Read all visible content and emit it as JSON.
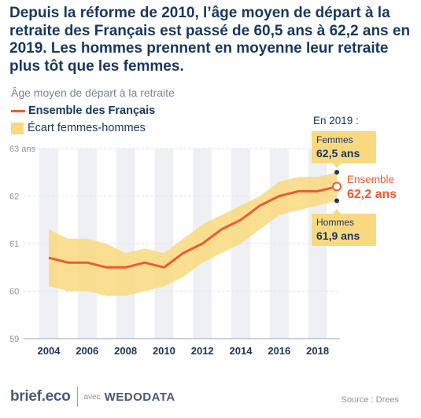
{
  "title": "Depuis la réforme de 2010, l’âge moyen de départ à la retraite des Français est passé de 60,5 ans à 62,2 ans en 2019. Les hommes prennent en moyenne leur retraite plus tôt que les femmes.",
  "colors": {
    "line": "#ef5a30",
    "band": "#f9d97f",
    "column": "#eef0f4",
    "text": "#17375e",
    "axis": "#9aa3b0"
  },
  "chart_data": {
    "type": "line",
    "title": "",
    "ylabel": "Âge moyen de départ à la retraite",
    "ylim": [
      59,
      63
    ],
    "y_ticks": [
      "63 ans",
      "62",
      "61",
      "60",
      "59"
    ],
    "x_ticks": [
      "2004",
      "2006",
      "2008",
      "2010",
      "2012",
      "2014",
      "2016",
      "2018"
    ],
    "legend": [
      "Ensemble des Français",
      "Écart femmes-hommes"
    ],
    "legend_position": "top-left",
    "series": [
      {
        "name": "Ensemble des Français",
        "x": [
          2004,
          2005,
          2006,
          2007,
          2008,
          2009,
          2010,
          2011,
          2012,
          2013,
          2014,
          2015,
          2016,
          2017,
          2018,
          2019
        ],
        "y": [
          60.7,
          60.6,
          60.6,
          60.5,
          60.5,
          60.6,
          60.5,
          60.8,
          61.0,
          61.3,
          61.5,
          61.8,
          62.0,
          62.1,
          62.1,
          62.2
        ]
      },
      {
        "name": "Écart femmes-hommes",
        "x": [
          2004,
          2005,
          2006,
          2007,
          2008,
          2009,
          2010,
          2011,
          2012,
          2013,
          2014,
          2015,
          2016,
          2017,
          2018,
          2019
        ],
        "upper": [
          61.3,
          61.1,
          61.1,
          61.0,
          60.8,
          60.9,
          60.8,
          61.1,
          61.4,
          61.6,
          61.8,
          62.0,
          62.3,
          62.4,
          62.4,
          62.5
        ],
        "lower": [
          60.1,
          60.0,
          60.0,
          59.9,
          59.9,
          60.0,
          60.1,
          60.3,
          60.6,
          60.8,
          61.0,
          61.3,
          61.6,
          61.7,
          61.8,
          61.9
        ]
      }
    ],
    "annotations": {
      "header": "En 2019 :",
      "femmes_label": "Femmes",
      "femmes_value": "62,5 ans",
      "ensemble_label": "Ensemble",
      "ensemble_value": "62,2 ans",
      "hommes_label": "Hommes",
      "hommes_value": "61,9 ans"
    }
  },
  "footer": {
    "brand": "brief.eco",
    "avec": "avec",
    "partner": "WEDODATA",
    "source": "Source : Drees"
  }
}
